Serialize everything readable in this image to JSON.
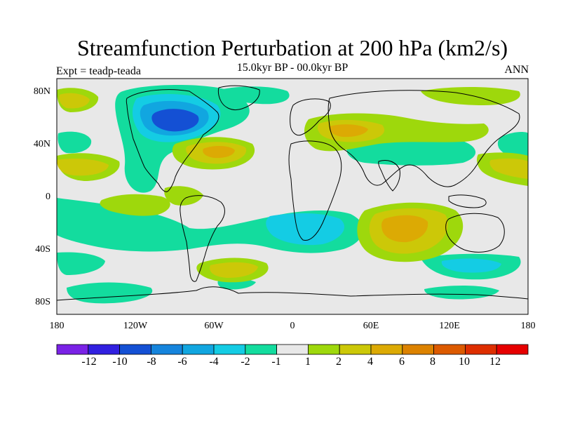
{
  "title": "Streamfunction Perturbation at 200 hPa (km2/s)",
  "subtitle": "15.0kyr BP - 00.0kyr BP",
  "left_label": "Expt = teadp-teada",
  "right_label": "ANN",
  "lat_labels": [
    "80N",
    "40N",
    "0",
    "40S",
    "80S"
  ],
  "lon_labels": [
    "180",
    "120W",
    "60W",
    "0",
    "60E",
    "120E",
    "180"
  ],
  "colorbar": {
    "labels": [
      "-12",
      "-10",
      "-8",
      "-6",
      "-4",
      "-2",
      "-1",
      "1",
      "2",
      "4",
      "6",
      "8",
      "10",
      "12"
    ],
    "colors": [
      "#7a22e6",
      "#3120e0",
      "#1450d4",
      "#1584dc",
      "#11a6e0",
      "#14cce4",
      "#13dc9e",
      "#e8e8e8",
      "#9ed80c",
      "#ccc808",
      "#dcaa04",
      "#dc8200",
      "#dc5a00",
      "#de2e00",
      "#e60000"
    ]
  },
  "map": {
    "background_color": "#e8e8e8",
    "coast_color": "#000000"
  }
}
